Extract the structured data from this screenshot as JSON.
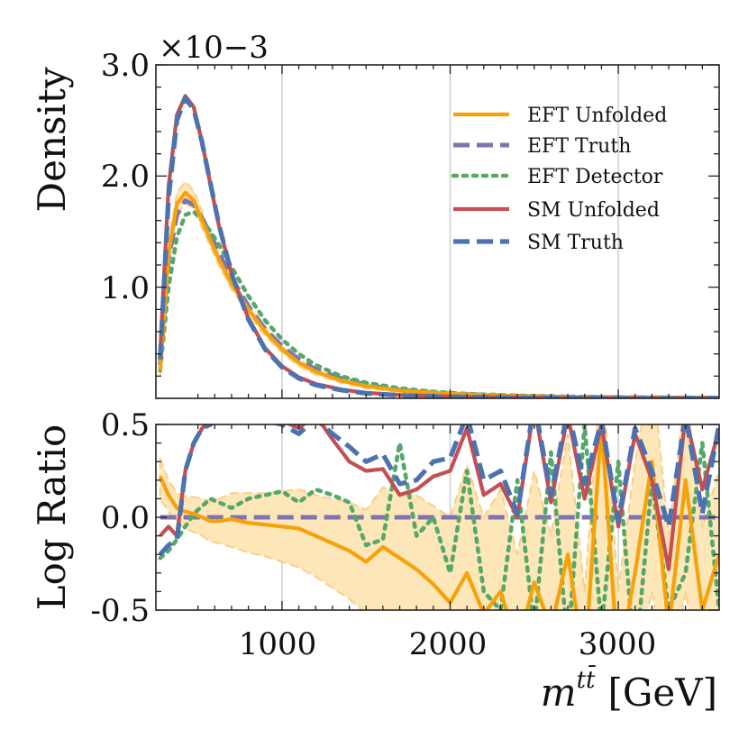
{
  "colors": {
    "eft_unfolded": "#f5a20a",
    "eft_truth": "#8172b2",
    "eft_detector": "#55a868",
    "sm_unfolded": "#c44e52",
    "sm_truth": "#4c72b0",
    "band": "#fde6b8",
    "band_edge": "#f9cf86"
  },
  "chart_data": [
    {
      "type": "line",
      "panel": "density",
      "ylabel": "Density",
      "scale_label": "×10−3",
      "y_tick_labels": [
        "3.0",
        "2.0",
        "1.0"
      ],
      "y_ticks": [
        3.0,
        2.0,
        1.0
      ],
      "xlim": [
        250,
        3600
      ],
      "ylim": [
        0,
        3.0
      ],
      "grid": "vertical",
      "legend": {
        "position": "top-right",
        "entries": [
          "EFT Unfolded",
          "EFT Truth",
          "EFT Detector",
          "SM Unfolded",
          "SM Truth"
        ]
      },
      "x": [
        275,
        325,
        375,
        425,
        475,
        525,
        575,
        625,
        700,
        800,
        900,
        1000,
        1100,
        1200,
        1350,
        1500,
        1700,
        1900,
        2100,
        2400,
        2700,
        3000,
        3300,
        3600
      ],
      "series": [
        {
          "name": "EFT Unfolded",
          "style": "solid",
          "values": [
            0.25,
            1.3,
            1.75,
            1.85,
            1.78,
            1.6,
            1.42,
            1.25,
            1.03,
            0.8,
            0.6,
            0.44,
            0.32,
            0.24,
            0.16,
            0.11,
            0.07,
            0.05,
            0.035,
            0.02,
            0.012,
            0.008,
            0.005,
            0.003
          ],
          "band_low": [
            0.2,
            1.2,
            1.65,
            1.76,
            1.7,
            1.53,
            1.36,
            1.19,
            0.98,
            0.76,
            0.56,
            0.41,
            0.29,
            0.21,
            0.14,
            0.09,
            0.055,
            0.035,
            0.02,
            0.01,
            0.005,
            0.003,
            0.002,
            0.001
          ],
          "band_high": [
            0.3,
            1.4,
            1.85,
            1.95,
            1.87,
            1.68,
            1.48,
            1.31,
            1.08,
            0.84,
            0.64,
            0.47,
            0.35,
            0.27,
            0.18,
            0.13,
            0.085,
            0.065,
            0.05,
            0.03,
            0.02,
            0.013,
            0.008,
            0.005
          ]
        },
        {
          "name": "EFT Truth",
          "style": "dashed",
          "values": [
            0.3,
            1.25,
            1.65,
            1.78,
            1.74,
            1.62,
            1.47,
            1.31,
            1.08,
            0.83,
            0.62,
            0.47,
            0.35,
            0.26,
            0.18,
            0.12,
            0.075,
            0.05,
            0.035,
            0.02,
            0.012,
            0.008,
            0.005,
            0.003
          ]
        },
        {
          "name": "EFT Detector",
          "style": "dotted",
          "values": [
            0.25,
            1.0,
            1.45,
            1.65,
            1.68,
            1.6,
            1.5,
            1.38,
            1.18,
            0.92,
            0.7,
            0.53,
            0.4,
            0.3,
            0.2,
            0.14,
            0.09,
            0.06,
            0.04,
            0.025,
            0.015,
            0.009,
            0.006,
            0.004
          ]
        },
        {
          "name": "SM Unfolded",
          "style": "solid",
          "values": [
            0.4,
            1.9,
            2.55,
            2.72,
            2.62,
            2.3,
            1.92,
            1.55,
            1.12,
            0.72,
            0.45,
            0.29,
            0.19,
            0.13,
            0.08,
            0.05,
            0.03,
            0.02,
            0.012,
            0.007,
            0.004,
            0.003,
            0.002,
            0.001
          ]
        },
        {
          "name": "SM Truth",
          "style": "dashed",
          "values": [
            0.35,
            1.8,
            2.5,
            2.7,
            2.6,
            2.3,
            1.93,
            1.56,
            1.12,
            0.71,
            0.44,
            0.28,
            0.18,
            0.12,
            0.075,
            0.045,
            0.027,
            0.017,
            0.011,
            0.006,
            0.004,
            0.002,
            0.0015,
            0.001
          ]
        }
      ]
    },
    {
      "type": "line",
      "panel": "ratio",
      "ylabel": "Log Ratio",
      "xlabel_var": "m",
      "xlabel_sup": "tt̄",
      "xlabel_unit": "[GeV]",
      "x_ticks": [
        1000,
        2000,
        3000
      ],
      "x_tick_labels": [
        "1000",
        "2000",
        "3000"
      ],
      "y_ticks": [
        0.5,
        0.0,
        -0.5
      ],
      "y_tick_labels": [
        "0.5",
        "0.0",
        "-0.5"
      ],
      "xlim": [
        250,
        3600
      ],
      "ylim": [
        -0.5,
        0.5
      ],
      "grid": "vertical",
      "x": [
        275,
        325,
        375,
        425,
        475,
        525,
        575,
        625,
        700,
        800,
        900,
        1000,
        1100,
        1200,
        1300,
        1400,
        1500,
        1600,
        1700,
        1800,
        1900,
        2000,
        2100,
        2200,
        2300,
        2400,
        2500,
        2600,
        2700,
        2800,
        2900,
        3000,
        3100,
        3200,
        3300,
        3400,
        3500,
        3600
      ],
      "series": [
        {
          "name": "EFT Unfolded",
          "style": "solid",
          "values": [
            0.22,
            0.12,
            0.05,
            0.03,
            0.02,
            0.0,
            -0.02,
            -0.02,
            -0.01,
            -0.03,
            -0.04,
            -0.05,
            -0.06,
            -0.1,
            -0.14,
            -0.18,
            -0.24,
            -0.16,
            -0.22,
            -0.28,
            -0.36,
            -0.46,
            -0.3,
            -0.52,
            -0.4,
            -0.7,
            -0.35,
            -0.6,
            -0.2,
            -0.8,
            0.5,
            -0.8,
            -0.3,
            0.3,
            -0.6,
            0.2,
            -0.5,
            -0.2
          ],
          "band_low": [
            0.1,
            0.03,
            -0.03,
            -0.06,
            -0.08,
            -0.1,
            -0.13,
            -0.14,
            -0.16,
            -0.19,
            -0.21,
            -0.24,
            -0.27,
            -0.32,
            -0.38,
            -0.44,
            -0.52,
            -0.5,
            -0.58,
            -0.66,
            -0.75,
            -0.85,
            -0.8,
            -0.95,
            -0.9,
            -1.1,
            -0.9,
            -1.0,
            -0.8,
            -1.1,
            -0.5,
            -1.1,
            -0.8,
            -0.4,
            -1.0,
            -0.4,
            -0.9,
            -0.7
          ],
          "band_high": [
            0.32,
            0.2,
            0.13,
            0.11,
            0.11,
            0.1,
            0.09,
            0.1,
            0.13,
            0.13,
            0.13,
            0.14,
            0.15,
            0.12,
            0.1,
            0.08,
            0.04,
            0.16,
            0.14,
            0.12,
            0.06,
            0.0,
            0.28,
            0.0,
            0.15,
            -0.2,
            0.25,
            -0.1,
            0.45,
            -0.4,
            0.8,
            -0.4,
            0.3,
            0.8,
            -0.1,
            0.7,
            -0.05,
            0.25
          ]
        },
        {
          "name": "EFT Truth",
          "style": "dashed",
          "values": [
            0.0,
            0.0,
            0.0,
            0.0,
            0.0,
            0.0,
            0.0,
            0.0,
            0.0,
            0.0,
            0.0,
            0.0,
            0.0,
            0.0,
            0.0,
            0.0,
            0.0,
            0.0,
            0.0,
            0.0,
            0.0,
            0.0,
            0.0,
            0.0,
            0.0,
            0.0,
            0.0,
            0.0,
            0.0,
            0.0,
            0.0,
            0.0,
            0.0,
            0.0,
            0.0,
            0.0,
            0.0,
            0.0
          ]
        },
        {
          "name": "EFT Detector",
          "style": "dotted",
          "values": [
            -0.22,
            -0.18,
            -0.12,
            -0.05,
            0.02,
            0.06,
            0.1,
            0.08,
            0.05,
            0.1,
            0.12,
            0.14,
            0.08,
            0.15,
            0.12,
            0.08,
            -0.15,
            -0.12,
            0.4,
            -0.1,
            0.0,
            -0.3,
            0.25,
            -0.4,
            -0.5,
            0.2,
            -0.6,
            0.35,
            -0.7,
            0.5,
            -0.6,
            0.3,
            -0.8,
            0.2,
            -0.5,
            -0.3,
            0.4,
            -0.5
          ]
        },
        {
          "name": "SM Unfolded",
          "style": "solid",
          "values": [
            -0.1,
            -0.05,
            -0.1,
            0.25,
            0.4,
            0.48,
            0.52,
            0.55,
            0.55,
            0.54,
            0.54,
            0.52,
            0.48,
            0.55,
            0.42,
            0.3,
            0.25,
            0.26,
            0.12,
            0.15,
            0.22,
            0.25,
            0.48,
            0.12,
            0.18,
            0.0,
            0.6,
            0.08,
            0.55,
            0.1,
            0.5,
            -0.05,
            0.45,
            0.2,
            -0.28,
            0.55,
            0.15,
            0.47
          ]
        },
        {
          "name": "SM Truth",
          "style": "dashed",
          "values": [
            -0.2,
            -0.15,
            -0.12,
            0.25,
            0.4,
            0.48,
            0.5,
            0.55,
            0.53,
            0.52,
            0.52,
            0.5,
            0.45,
            0.53,
            0.45,
            0.38,
            0.3,
            0.34,
            0.18,
            0.2,
            0.3,
            0.32,
            0.55,
            0.2,
            0.25,
            0.02,
            0.62,
            0.12,
            0.58,
            0.18,
            0.52,
            -0.02,
            0.48,
            0.25,
            -0.05,
            0.55,
            0.02,
            0.5
          ]
        }
      ]
    }
  ]
}
